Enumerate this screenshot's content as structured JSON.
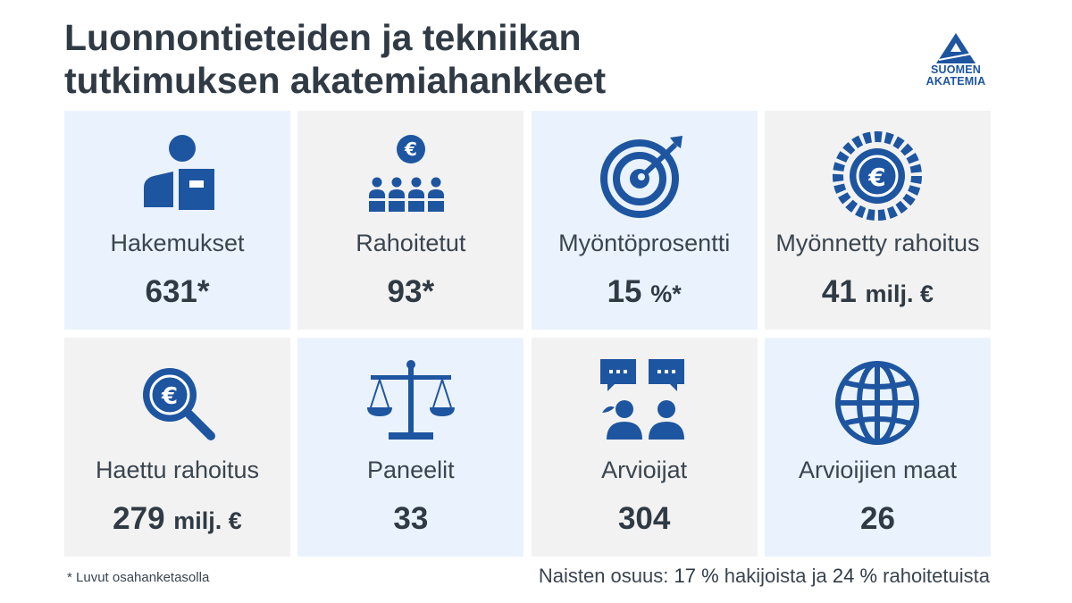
{
  "title_line1": "Luonnontieteiden ja tekniikan",
  "title_line2": "tutkimuksen akatemiahankkeet",
  "logo": {
    "line1": "SUOMEN",
    "line2": "AKATEMIA",
    "color": "#1e55a0"
  },
  "colors": {
    "icon": "#1e55a0",
    "tile_blue": "#eaf3fd",
    "tile_grey": "#f2f2f2",
    "text": "#2f3a44"
  },
  "tiles": [
    {
      "icon": "applicant-box-icon",
      "label": "Hakemukset",
      "value": "631*",
      "unit": ""
    },
    {
      "icon": "funded-group-icon",
      "label": "Rahoitetut",
      "value": "93*",
      "unit": ""
    },
    {
      "icon": "target-icon",
      "label": "Myöntöprosentti",
      "value": "15",
      "unit": "%*"
    },
    {
      "icon": "euro-coin-icon",
      "label": "Myönnetty rahoitus",
      "value": "41",
      "unit": "milj. €"
    },
    {
      "icon": "euro-search-icon",
      "label": "Haettu rahoitus",
      "value": "279",
      "unit": "milj. €"
    },
    {
      "icon": "scales-icon",
      "label": "Paneelit",
      "value": "33",
      "unit": ""
    },
    {
      "icon": "reviewers-chat-icon",
      "label": "Arvioijat",
      "value": "304",
      "unit": ""
    },
    {
      "icon": "globe-icon",
      "label": "Arvioijien maat",
      "value": "26",
      "unit": ""
    }
  ],
  "footnote": "* Luvut osahanketasolla",
  "women": {
    "prefix": "Naisten osuus:",
    "applicants_value": "17 %",
    "applicants_text": "hakijoista ja",
    "funded_value": "24 %",
    "funded_text": "rahoitetuista"
  }
}
